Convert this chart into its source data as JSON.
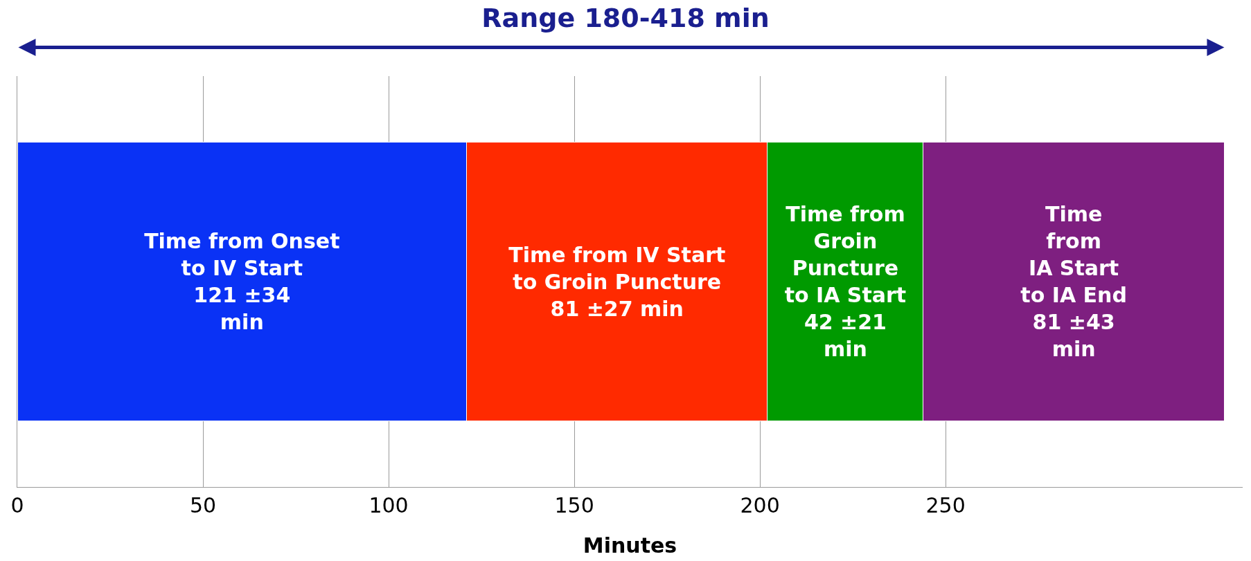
{
  "chart_data": {
    "type": "bar",
    "orientation": "horizontal",
    "stacked": true,
    "title": "Range 180-418 min",
    "xlabel": "Minutes",
    "categories": [
      null
    ],
    "series": [
      {
        "name": "Time from Onset\nto IV Start",
        "color": "#0a32f5",
        "values": [
          121
        ],
        "value_labels": [
          "121 ±34\nmin"
        ]
      },
      {
        "name": "Time from IV Start\nto Groin Puncture",
        "color": "#ff2a00",
        "values": [
          81
        ],
        "value_labels": [
          "81 ±27 min"
        ]
      },
      {
        "name": "Time from\nGroin\nPuncture\nto IA Start",
        "color": "#009a00",
        "values": [
          42
        ],
        "value_labels": [
          "42 ±21\nmin"
        ]
      },
      {
        "name": "Time\nfrom\nIA Start\nto IA End",
        "color": "#7e1f80",
        "values": [
          81
        ],
        "value_labels": [
          "81 ±43\nmin"
        ]
      }
    ],
    "xlim": [
      0,
      330
    ],
    "xticks": [
      0,
      50,
      100,
      150,
      200,
      250
    ],
    "grid": "x",
    "legend": false,
    "tick_labels": "x"
  }
}
